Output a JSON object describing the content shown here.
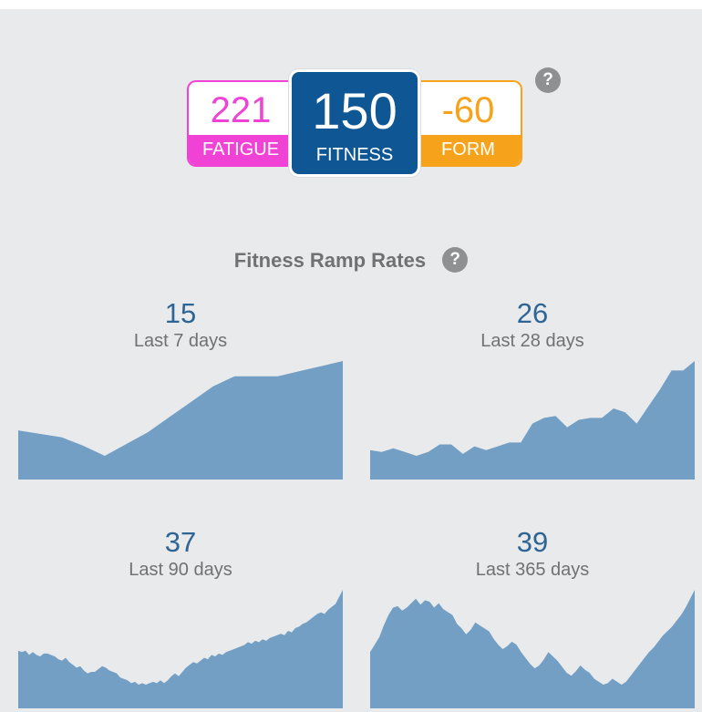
{
  "summary": {
    "fatigue": {
      "value": "221",
      "label": "FATIGUE",
      "color": "#f142d6"
    },
    "fitness": {
      "value": "150",
      "label": "FITNESS",
      "color": "#0f5694"
    },
    "form": {
      "value": "-60",
      "label": "FORM",
      "color": "#f7a21b"
    },
    "help_icon": "question-mark-icon"
  },
  "ramp_rates": {
    "title": "Fitness Ramp Rates",
    "help_icon": "question-mark-icon",
    "area_color": "#739fc5"
  },
  "chart_data": [
    {
      "type": "area",
      "value": "15",
      "label": "Last 7 days",
      "y": [
        103,
        101,
        99,
        94,
        88,
        95,
        102,
        111,
        120,
        129,
        135,
        135,
        135,
        138,
        141,
        144
      ]
    },
    {
      "type": "area",
      "value": "26",
      "label": "Last 28 days",
      "y": [
        108,
        107,
        109,
        107,
        105,
        107,
        111,
        111,
        106,
        110,
        108,
        110,
        112,
        112,
        122,
        125,
        126,
        120,
        124,
        125,
        125,
        130,
        128,
        122,
        131,
        140,
        150,
        150,
        155
      ]
    },
    {
      "type": "area",
      "value": "37",
      "label": "Last 90 days",
      "y": [
        107,
        106,
        107,
        104,
        106,
        104,
        103,
        105,
        105,
        104,
        103,
        101,
        100,
        102,
        99,
        97,
        95,
        96,
        93,
        91,
        92,
        92,
        94,
        96,
        95,
        93,
        92,
        91,
        88,
        87,
        86,
        84,
        85,
        83,
        84,
        83,
        84,
        85,
        84,
        86,
        84,
        86,
        89,
        91,
        89,
        92,
        95,
        97,
        99,
        98,
        100,
        102,
        101,
        104,
        103,
        105,
        104,
        106,
        107,
        108,
        109,
        110,
        111,
        113,
        112,
        114,
        113,
        115,
        114,
        116,
        117,
        118,
        119,
        118,
        121,
        120,
        123,
        124,
        126,
        127,
        129,
        131,
        133,
        134,
        133,
        136,
        138,
        140,
        145,
        150
      ]
    },
    {
      "type": "area",
      "value": "39",
      "label": "Last 365 days",
      "y": [
        116,
        121,
        126,
        134,
        141,
        146,
        147,
        144,
        146,
        149,
        152,
        148,
        151,
        150,
        146,
        149,
        145,
        143,
        141,
        135,
        132,
        128,
        131,
        136,
        134,
        132,
        130,
        125,
        121,
        118,
        120,
        123,
        121,
        116,
        112,
        108,
        105,
        107,
        111,
        116,
        113,
        110,
        106,
        102,
        100,
        103,
        107,
        104,
        102,
        98,
        96,
        94,
        95,
        98,
        96,
        94,
        96,
        100,
        104,
        108,
        112,
        116,
        119,
        123,
        127,
        130,
        133,
        137,
        141,
        146,
        152,
        158
      ]
    }
  ]
}
